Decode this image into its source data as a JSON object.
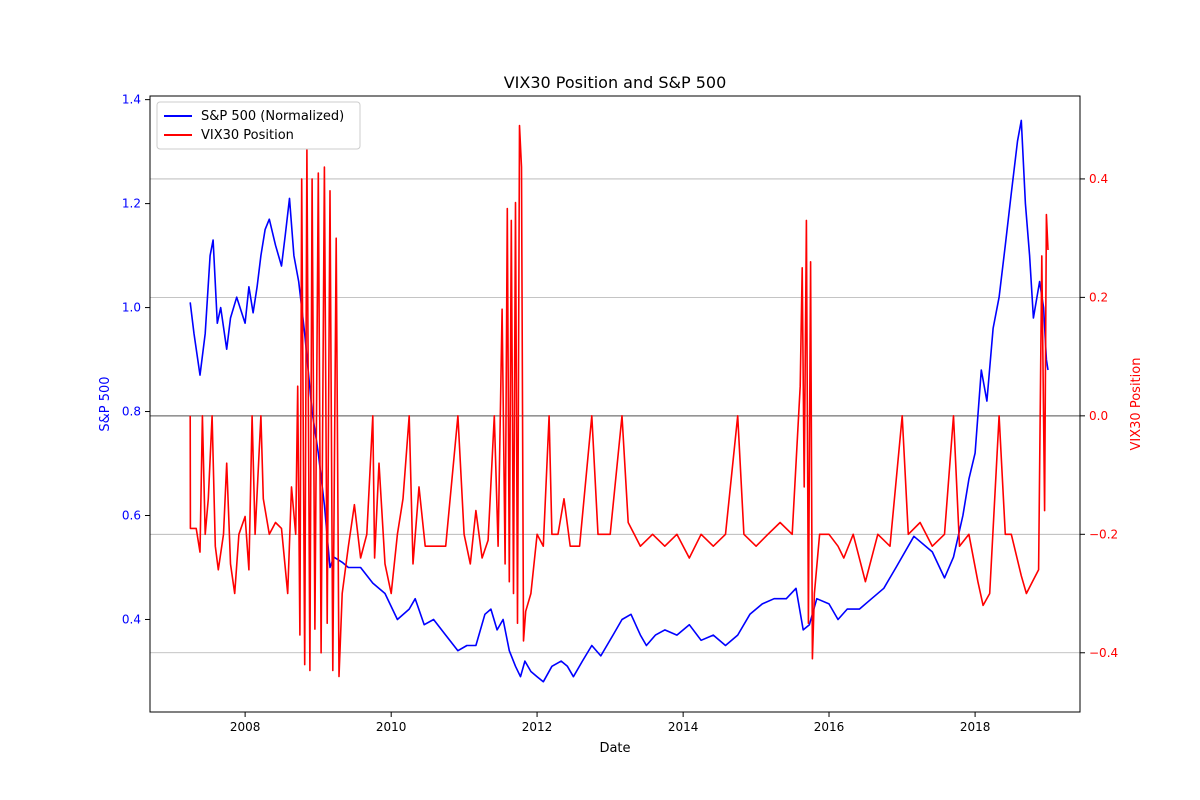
{
  "chart_data": {
    "type": "line",
    "title": "VIX30 Position and S&P 500",
    "xlabel": "Date",
    "ylabel_left": "S&P 500",
    "ylabel_right": "VIX30 Position",
    "x_range": [
      "2006-09-12",
      "2019-06-10"
    ],
    "ylim_left": [
      0.222,
      1.407
    ],
    "ylim_right": [
      -0.5,
      0.54
    ],
    "x_ticks": [
      "2008",
      "2010",
      "2012",
      "2014",
      "2016",
      "2018"
    ],
    "y_ticks_left": [
      "0.4",
      "0.6",
      "0.8",
      "1.0",
      "1.2",
      "1.4"
    ],
    "y_ticks_right": [
      "-0.4",
      "-0.2",
      "0.0",
      "0.2",
      "0.4"
    ],
    "grid": "right-axis horizontal",
    "legend_position": "top-left",
    "colors": {
      "sp500": "#0000ff",
      "vix30": "#ff0000",
      "zero_line": "#555555"
    },
    "series": [
      {
        "name": "S&P 500 (Normalized)",
        "axis": "left",
        "points": [
          [
            "2007-04-01",
            1.01
          ],
          [
            "2007-04-20",
            0.95
          ],
          [
            "2007-05-20",
            0.87
          ],
          [
            "2007-06-15",
            0.95
          ],
          [
            "2007-07-10",
            1.1
          ],
          [
            "2007-07-25",
            1.13
          ],
          [
            "2007-08-15",
            0.97
          ],
          [
            "2007-09-01",
            1.0
          ],
          [
            "2007-10-01",
            0.92
          ],
          [
            "2007-10-20",
            0.98
          ],
          [
            "2007-11-20",
            1.02
          ],
          [
            "2008-01-01",
            0.97
          ],
          [
            "2008-01-20",
            1.04
          ],
          [
            "2008-02-10",
            0.99
          ],
          [
            "2008-03-01",
            1.04
          ],
          [
            "2008-03-20",
            1.1
          ],
          [
            "2008-04-10",
            1.15
          ],
          [
            "2008-05-01",
            1.17
          ],
          [
            "2008-06-01",
            1.12
          ],
          [
            "2008-07-01",
            1.08
          ],
          [
            "2008-07-20",
            1.14
          ],
          [
            "2008-08-10",
            1.21
          ],
          [
            "2008-09-01",
            1.1
          ],
          [
            "2008-09-25",
            1.05
          ],
          [
            "2008-10-25",
            0.95
          ],
          [
            "2008-12-01",
            0.8
          ],
          [
            "2009-01-01",
            0.72
          ],
          [
            "2009-02-01",
            0.62
          ],
          [
            "2009-03-01",
            0.5
          ],
          [
            "2009-03-20",
            0.52
          ],
          [
            "2009-05-01",
            0.51
          ],
          [
            "2009-06-01",
            0.5
          ],
          [
            "2009-08-01",
            0.5
          ],
          [
            "2009-10-01",
            0.47
          ],
          [
            "2009-12-01",
            0.45
          ],
          [
            "2010-02-01",
            0.4
          ],
          [
            "2010-04-01",
            0.42
          ],
          [
            "2010-05-01",
            0.44
          ],
          [
            "2010-06-15",
            0.39
          ],
          [
            "2010-08-01",
            0.4
          ],
          [
            "2010-10-01",
            0.37
          ],
          [
            "2010-12-01",
            0.34
          ],
          [
            "2011-01-15",
            0.35
          ],
          [
            "2011-03-01",
            0.35
          ],
          [
            "2011-04-15",
            0.41
          ],
          [
            "2011-05-15",
            0.42
          ],
          [
            "2011-06-15",
            0.38
          ],
          [
            "2011-07-15",
            0.4
          ],
          [
            "2011-08-15",
            0.34
          ],
          [
            "2011-09-15",
            0.31
          ],
          [
            "2011-10-10",
            0.29
          ],
          [
            "2011-11-01",
            0.32
          ],
          [
            "2011-12-01",
            0.3
          ],
          [
            "2012-01-01",
            0.29
          ],
          [
            "2012-02-01",
            0.28
          ],
          [
            "2012-03-15",
            0.31
          ],
          [
            "2012-05-01",
            0.32
          ],
          [
            "2012-06-01",
            0.31
          ],
          [
            "2012-07-01",
            0.29
          ],
          [
            "2012-08-15",
            0.32
          ],
          [
            "2012-10-01",
            0.35
          ],
          [
            "2012-11-15",
            0.33
          ],
          [
            "2013-01-15",
            0.37
          ],
          [
            "2013-03-01",
            0.4
          ],
          [
            "2013-04-15",
            0.41
          ],
          [
            "2013-06-01",
            0.37
          ],
          [
            "2013-07-01",
            0.35
          ],
          [
            "2013-08-15",
            0.37
          ],
          [
            "2013-10-01",
            0.38
          ],
          [
            "2013-12-01",
            0.37
          ],
          [
            "2014-02-01",
            0.39
          ],
          [
            "2014-04-01",
            0.36
          ],
          [
            "2014-06-01",
            0.37
          ],
          [
            "2014-08-01",
            0.35
          ],
          [
            "2014-10-01",
            0.37
          ],
          [
            "2014-12-01",
            0.41
          ],
          [
            "2015-02-01",
            0.43
          ],
          [
            "2015-04-01",
            0.44
          ],
          [
            "2015-06-01",
            0.44
          ],
          [
            "2015-07-20",
            0.46
          ],
          [
            "2015-08-25",
            0.38
          ],
          [
            "2015-09-25",
            0.39
          ],
          [
            "2015-11-01",
            0.44
          ],
          [
            "2016-01-01",
            0.43
          ],
          [
            "2016-02-15",
            0.4
          ],
          [
            "2016-04-01",
            0.42
          ],
          [
            "2016-06-01",
            0.42
          ],
          [
            "2016-08-01",
            0.44
          ],
          [
            "2016-10-01",
            0.46
          ],
          [
            "2016-12-01",
            0.5
          ],
          [
            "2017-03-01",
            0.56
          ],
          [
            "2017-06-01",
            0.53
          ],
          [
            "2017-08-01",
            0.48
          ],
          [
            "2017-09-15",
            0.52
          ],
          [
            "2017-11-01",
            0.6
          ],
          [
            "2017-12-01",
            0.67
          ],
          [
            "2018-01-01",
            0.72
          ],
          [
            "2018-02-01",
            0.88
          ],
          [
            "2018-03-01",
            0.82
          ],
          [
            "2018-04-01",
            0.96
          ],
          [
            "2018-05-01",
            1.02
          ],
          [
            "2018-06-01",
            1.12
          ],
          [
            "2018-07-01",
            1.22
          ],
          [
            "2018-08-01",
            1.32
          ],
          [
            "2018-08-20",
            1.36
          ],
          [
            "2018-09-10",
            1.2
          ],
          [
            "2018-10-01",
            1.1
          ],
          [
            "2018-10-20",
            0.98
          ],
          [
            "2018-11-20",
            1.05
          ],
          [
            "2018-12-10",
            1.0
          ],
          [
            "2018-12-24",
            0.9
          ],
          [
            "2019-01-01",
            0.88
          ]
        ]
      },
      {
        "name": "VIX30 Position",
        "axis": "right",
        "points": [
          [
            "2007-04-01",
            0.0
          ],
          [
            "2007-04-02",
            -0.19
          ],
          [
            "2007-05-01",
            -0.19
          ],
          [
            "2007-05-20",
            -0.23
          ],
          [
            "2007-06-01",
            0.0
          ],
          [
            "2007-06-15",
            -0.2
          ],
          [
            "2007-07-01",
            -0.14
          ],
          [
            "2007-07-20",
            0.0
          ],
          [
            "2007-08-05",
            -0.22
          ],
          [
            "2007-08-20",
            -0.26
          ],
          [
            "2007-09-15",
            -0.2
          ],
          [
            "2007-10-01",
            -0.08
          ],
          [
            "2007-10-20",
            -0.25
          ],
          [
            "2007-11-10",
            -0.3
          ],
          [
            "2007-12-01",
            -0.2
          ],
          [
            "2008-01-01",
            -0.17
          ],
          [
            "2008-01-20",
            -0.26
          ],
          [
            "2008-02-05",
            0.0
          ],
          [
            "2008-02-20",
            -0.2
          ],
          [
            "2008-03-20",
            0.0
          ],
          [
            "2008-04-01",
            -0.14
          ],
          [
            "2008-05-01",
            -0.2
          ],
          [
            "2008-06-01",
            -0.18
          ],
          [
            "2008-07-01",
            -0.19
          ],
          [
            "2008-08-01",
            -0.3
          ],
          [
            "2008-08-20",
            -0.12
          ],
          [
            "2008-09-10",
            -0.2
          ],
          [
            "2008-09-20",
            0.05
          ],
          [
            "2008-10-01",
            -0.37
          ],
          [
            "2008-10-10",
            0.4
          ],
          [
            "2008-10-25",
            -0.42
          ],
          [
            "2008-11-05",
            0.45
          ],
          [
            "2008-11-20",
            -0.43
          ],
          [
            "2008-12-01",
            0.4
          ],
          [
            "2008-12-15",
            -0.36
          ],
          [
            "2009-01-01",
            0.41
          ],
          [
            "2009-01-15",
            -0.4
          ],
          [
            "2009-02-01",
            0.42
          ],
          [
            "2009-02-15",
            -0.35
          ],
          [
            "2009-03-01",
            0.38
          ],
          [
            "2009-03-15",
            -0.43
          ],
          [
            "2009-04-01",
            0.3
          ],
          [
            "2009-04-15",
            -0.44
          ],
          [
            "2009-05-01",
            -0.3
          ],
          [
            "2009-06-01",
            -0.22
          ],
          [
            "2009-07-01",
            -0.15
          ],
          [
            "2009-08-01",
            -0.24
          ],
          [
            "2009-09-01",
            -0.2
          ],
          [
            "2009-10-01",
            0.0
          ],
          [
            "2009-10-10",
            -0.24
          ],
          [
            "2009-11-01",
            -0.08
          ],
          [
            "2009-12-01",
            -0.25
          ],
          [
            "2010-01-01",
            -0.3
          ],
          [
            "2010-02-01",
            -0.2
          ],
          [
            "2010-03-01",
            -0.14
          ],
          [
            "2010-04-01",
            0.0
          ],
          [
            "2010-04-20",
            -0.25
          ],
          [
            "2010-05-20",
            -0.12
          ],
          [
            "2010-06-20",
            -0.22
          ],
          [
            "2010-08-01",
            -0.22
          ],
          [
            "2010-10-01",
            -0.22
          ],
          [
            "2010-12-01",
            0.0
          ],
          [
            "2011-01-01",
            -0.2
          ],
          [
            "2011-02-01",
            -0.25
          ],
          [
            "2011-03-01",
            -0.16
          ],
          [
            "2011-04-01",
            -0.24
          ],
          [
            "2011-05-01",
            -0.21
          ],
          [
            "2011-06-01",
            0.0
          ],
          [
            "2011-06-20",
            -0.22
          ],
          [
            "2011-07-10",
            0.18
          ],
          [
            "2011-07-25",
            -0.25
          ],
          [
            "2011-08-05",
            0.35
          ],
          [
            "2011-08-15",
            -0.28
          ],
          [
            "2011-08-25",
            0.33
          ],
          [
            "2011-09-05",
            -0.3
          ],
          [
            "2011-09-15",
            0.36
          ],
          [
            "2011-09-25",
            -0.35
          ],
          [
            "2011-10-05",
            0.49
          ],
          [
            "2011-10-15",
            0.42
          ],
          [
            "2011-10-25",
            -0.38
          ],
          [
            "2011-11-05",
            -0.33
          ],
          [
            "2011-12-01",
            -0.3
          ],
          [
            "2012-01-01",
            -0.2
          ],
          [
            "2012-02-01",
            -0.22
          ],
          [
            "2012-03-01",
            0.0
          ],
          [
            "2012-03-15",
            -0.2
          ],
          [
            "2012-04-15",
            -0.2
          ],
          [
            "2012-05-15",
            -0.14
          ],
          [
            "2012-06-15",
            -0.22
          ],
          [
            "2012-08-01",
            -0.22
          ],
          [
            "2012-10-01",
            0.0
          ],
          [
            "2012-11-01",
            -0.2
          ],
          [
            "2013-01-01",
            -0.2
          ],
          [
            "2013-03-01",
            0.0
          ],
          [
            "2013-04-01",
            -0.18
          ],
          [
            "2013-06-01",
            -0.22
          ],
          [
            "2013-08-01",
            -0.2
          ],
          [
            "2013-10-01",
            -0.22
          ],
          [
            "2013-12-01",
            -0.2
          ],
          [
            "2014-02-01",
            -0.24
          ],
          [
            "2014-04-01",
            -0.2
          ],
          [
            "2014-06-01",
            -0.22
          ],
          [
            "2014-08-01",
            -0.2
          ],
          [
            "2014-10-01",
            0.0
          ],
          [
            "2014-11-01",
            -0.2
          ],
          [
            "2015-01-01",
            -0.22
          ],
          [
            "2015-03-01",
            -0.2
          ],
          [
            "2015-05-01",
            -0.18
          ],
          [
            "2015-07-01",
            -0.2
          ],
          [
            "2015-08-10",
            0.05
          ],
          [
            "2015-08-20",
            0.25
          ],
          [
            "2015-08-30",
            -0.12
          ],
          [
            "2015-09-10",
            0.33
          ],
          [
            "2015-09-20",
            -0.35
          ],
          [
            "2015-10-01",
            0.26
          ],
          [
            "2015-10-10",
            -0.41
          ],
          [
            "2015-10-20",
            -0.3
          ],
          [
            "2015-11-15",
            -0.2
          ],
          [
            "2016-01-01",
            -0.2
          ],
          [
            "2016-02-15",
            -0.22
          ],
          [
            "2016-03-15",
            -0.24
          ],
          [
            "2016-05-01",
            -0.2
          ],
          [
            "2016-07-01",
            -0.28
          ],
          [
            "2016-09-01",
            -0.2
          ],
          [
            "2016-11-01",
            -0.22
          ],
          [
            "2017-01-01",
            0.0
          ],
          [
            "2017-02-01",
            -0.2
          ],
          [
            "2017-04-01",
            -0.18
          ],
          [
            "2017-06-01",
            -0.22
          ],
          [
            "2017-08-01",
            -0.2
          ],
          [
            "2017-09-15",
            0.0
          ],
          [
            "2017-10-15",
            -0.22
          ],
          [
            "2017-12-01",
            -0.2
          ],
          [
            "2018-01-15",
            -0.28
          ],
          [
            "2018-02-10",
            -0.32
          ],
          [
            "2018-03-15",
            -0.3
          ],
          [
            "2018-05-01",
            0.0
          ],
          [
            "2018-06-01",
            -0.2
          ],
          [
            "2018-07-01",
            -0.2
          ],
          [
            "2018-08-20",
            -0.27
          ],
          [
            "2018-09-15",
            -0.3
          ],
          [
            "2018-10-15",
            -0.28
          ],
          [
            "2018-11-15",
            -0.26
          ],
          [
            "2018-12-01",
            0.27
          ],
          [
            "2018-12-15",
            -0.16
          ],
          [
            "2018-12-24",
            0.34
          ],
          [
            "2019-01-01",
            0.28
          ]
        ]
      }
    ]
  }
}
